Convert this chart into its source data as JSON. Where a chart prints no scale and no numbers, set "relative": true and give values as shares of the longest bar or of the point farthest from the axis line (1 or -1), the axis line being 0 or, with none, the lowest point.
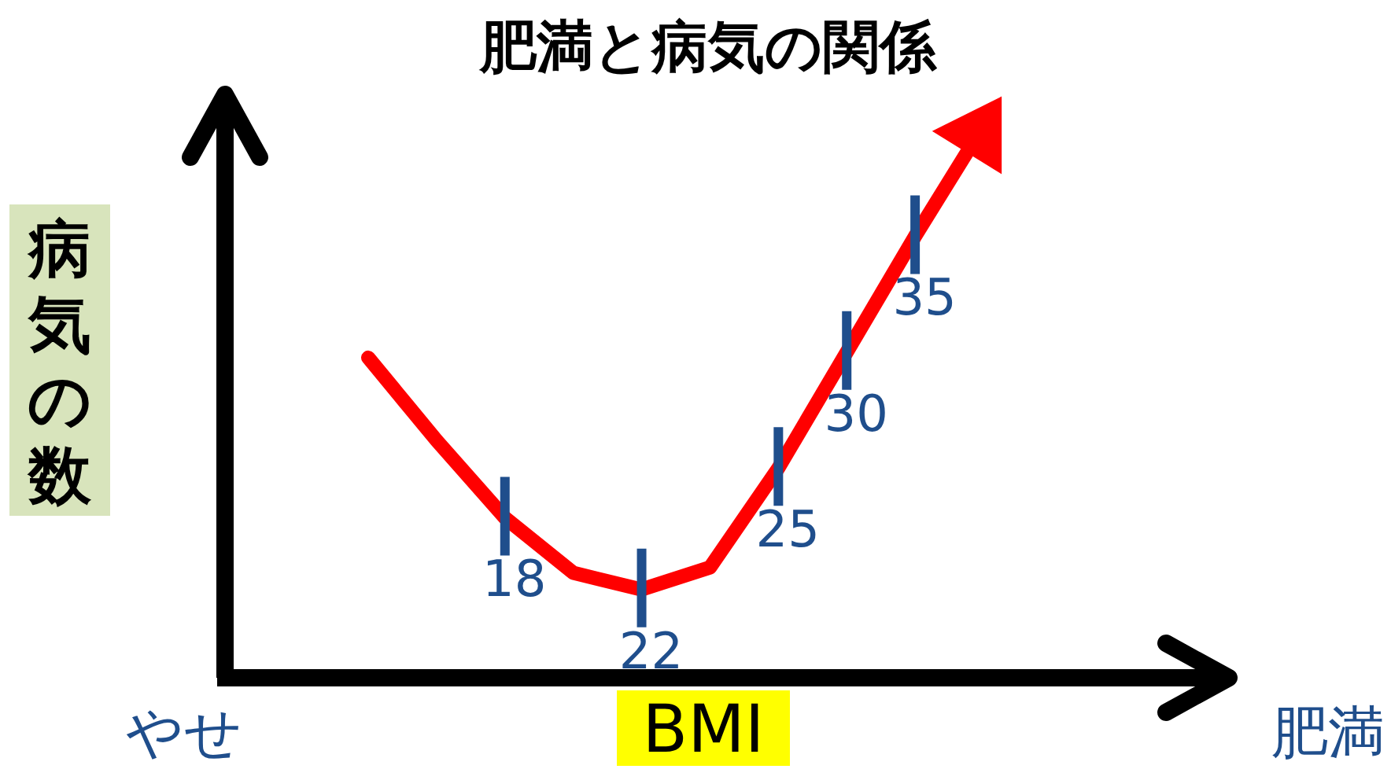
{
  "chart_data": {
    "type": "line",
    "title": "肥満と病気の関係",
    "xlabel": "BMI",
    "ylabel": "病気の数",
    "relative": true,
    "line_style": "solid",
    "categories": [
      null,
      null,
      null,
      null,
      null,
      null,
      null,
      null,
      null,
      null
    ],
    "series": [
      {
        "color": "#ff0000",
        "values": [
          0.58,
          0.43,
          0.29,
          0.19,
          0.16,
          0.2,
          0.38,
          0.59,
          0.8,
          1
        ]
      }
    ],
    "annotations": [
      {
        "text": "18",
        "y": 0.29
      },
      {
        "text": "22",
        "y": 0.16
      },
      {
        "text": "25",
        "y": 0.38
      },
      {
        "text": "30",
        "y": 0.59
      },
      {
        "text": "35",
        "y": 0.8
      },
      "やせ",
      "肥満"
    ]
  }
}
